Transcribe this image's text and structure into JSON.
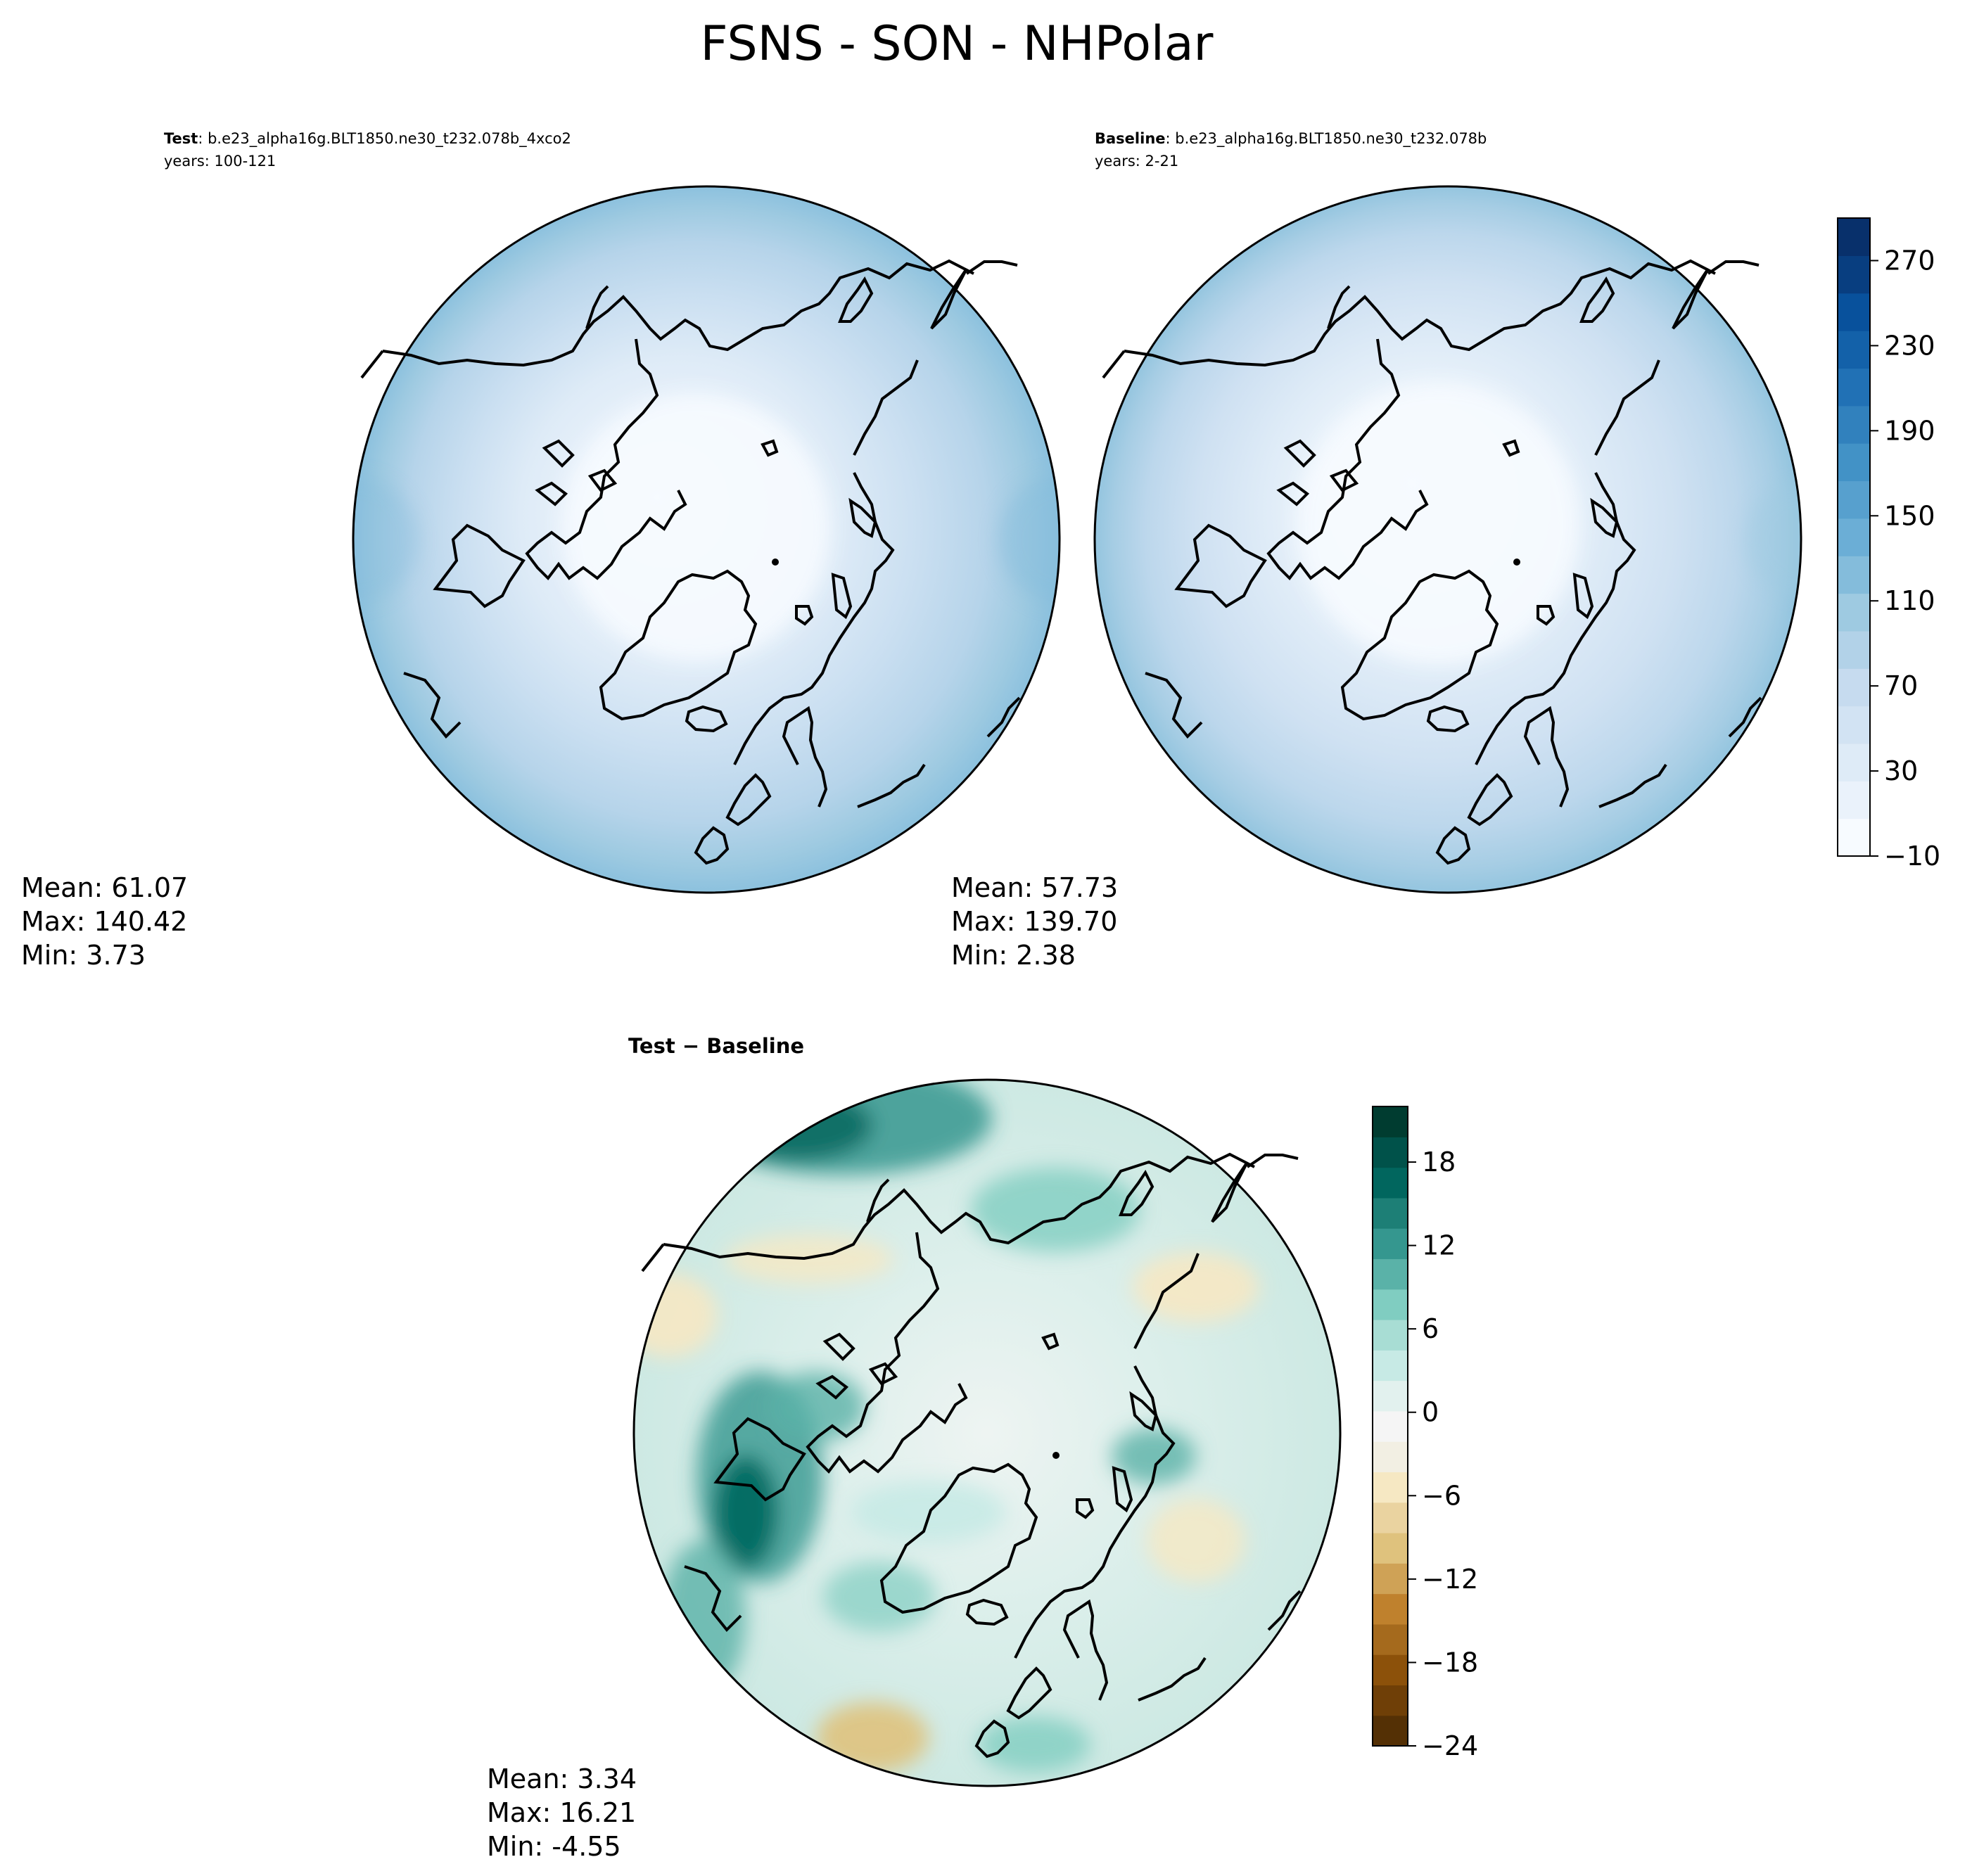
{
  "figure": {
    "title": "FSNS - SON - NHPolar"
  },
  "panels": {
    "test": {
      "label": "Test",
      "case": ": b.e23_alpha16g.BLT1850.ne30_t232.078b_4xco2",
      "years": "years: 100-121",
      "mean": "Mean: 61.07",
      "max": "Max: 140.42",
      "min": "Min:  3.73"
    },
    "baseline": {
      "label": "Baseline",
      "case": ": b.e23_alpha16g.BLT1850.ne30_t232.078b",
      "years": "years: 2-21",
      "mean": "Mean: 57.73",
      "max": "Max: 139.70",
      "min": "Min:  2.38"
    },
    "diff": {
      "title": "Test − Baseline",
      "mean": "Mean:  3.34",
      "max": "Max: 16.21",
      "min": "Min: -4.55"
    }
  },
  "colorbars": {
    "main": {
      "ticks": [
        "−10",
        "30",
        "70",
        "110",
        "150",
        "190",
        "230",
        "270"
      ],
      "range": [
        -10,
        290
      ],
      "colors": [
        "#f7fbff",
        "#eaf2fb",
        "#deebf7",
        "#d2e3f3",
        "#c6dbef",
        "#b2d2e8",
        "#9ecae1",
        "#84bcdb",
        "#6baed6",
        "#57a0ce",
        "#4292c6",
        "#3181bd",
        "#2171b5",
        "#1361a9",
        "#08519c",
        "#083e80",
        "#08306b"
      ]
    },
    "diff": {
      "ticks": [
        "−24",
        "−18",
        "−12",
        "−6",
        "0",
        "6",
        "12",
        "18"
      ],
      "range": [
        -24,
        22
      ],
      "colors": [
        "#543005",
        "#6f3f07",
        "#8c510a",
        "#a56a1d",
        "#bf812d",
        "#cfa256",
        "#dfc27d",
        "#ead3a0",
        "#f6e8c3",
        "#f2efe3",
        "#f5f5f5",
        "#e2f1ee",
        "#c7eae5",
        "#a8ddd4",
        "#80cdc1",
        "#5ab2a8",
        "#35978f",
        "#1d7f76",
        "#01665e",
        "#00524a",
        "#003c30"
      ]
    }
  },
  "map": {
    "projection": "North Polar Stereographic",
    "coastline_color": "#000000"
  }
}
